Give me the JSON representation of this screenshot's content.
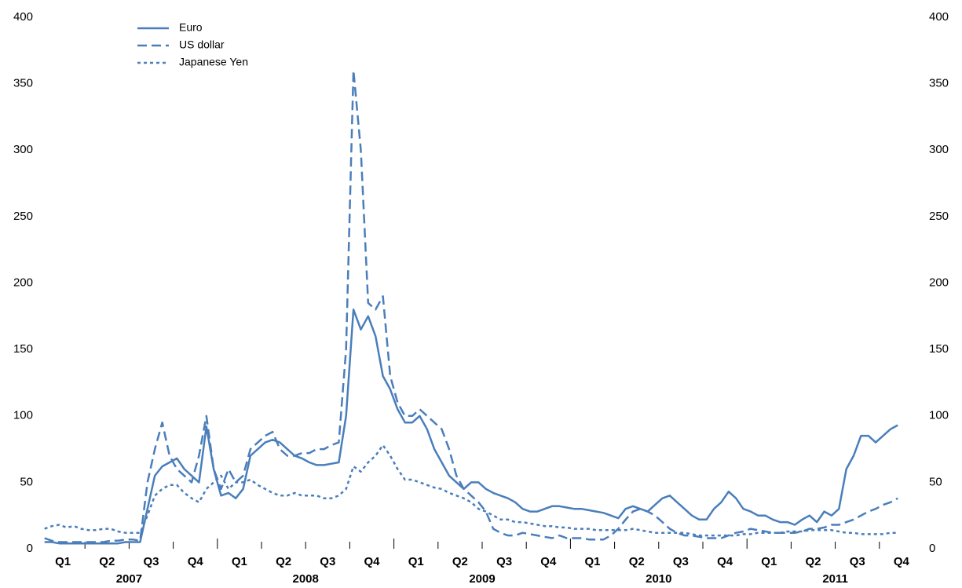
{
  "chart_data": {
    "type": "line",
    "categories": [
      null,
      null,
      null,
      "Q1",
      null,
      null,
      null,
      null,
      null,
      "Q2",
      null,
      null,
      null,
      null,
      null,
      "Q3",
      null,
      null,
      null,
      null,
      null,
      "Q4",
      null,
      null,
      null,
      null,
      null,
      "Q1",
      null,
      null,
      null,
      null,
      null,
      "Q2",
      null,
      null,
      null,
      null,
      null,
      "Q3",
      null,
      null,
      null,
      null,
      null,
      "Q4",
      null,
      null,
      null,
      null,
      null,
      "Q1",
      null,
      null,
      null,
      null,
      null,
      "Q2",
      null,
      null,
      null,
      null,
      null,
      "Q3",
      null,
      null,
      null,
      null,
      null,
      "Q4",
      null,
      null,
      null,
      null,
      null,
      "Q1",
      null,
      null,
      null,
      null,
      null,
      "Q2",
      null,
      null,
      null,
      null,
      null,
      "Q3",
      null,
      null,
      null,
      null,
      null,
      "Q4",
      null,
      null,
      null,
      null,
      null,
      "Q1",
      null,
      null,
      null,
      null,
      null,
      "Q2",
      null,
      null,
      null,
      null,
      null,
      "Q3",
      null,
      null,
      null,
      null,
      null,
      "Q4",
      null,
      null
    ],
    "years": [
      "2007",
      "2008",
      "2009",
      "2010",
      "2011"
    ],
    "series": [
      {
        "name": "Euro",
        "color": "#4a7ebb",
        "dash": "solid",
        "values": [
          5,
          5,
          4,
          4,
          4,
          4,
          4,
          4,
          4,
          4,
          4,
          5,
          5,
          5,
          30,
          55,
          62,
          65,
          68,
          60,
          55,
          50,
          92,
          60,
          40,
          42,
          38,
          45,
          70,
          75,
          80,
          82,
          80,
          75,
          70,
          68,
          65,
          63,
          63,
          64,
          65,
          100,
          180,
          165,
          175,
          160,
          130,
          120,
          105,
          95,
          95,
          100,
          90,
          75,
          65,
          55,
          50,
          45,
          50,
          50,
          45,
          42,
          40,
          38,
          35,
          30,
          28,
          28,
          30,
          32,
          32,
          31,
          30,
          30,
          29,
          28,
          27,
          25,
          23,
          30,
          32,
          30,
          28,
          33,
          38,
          40,
          35,
          30,
          25,
          22,
          22,
          30,
          35,
          43,
          38,
          30,
          28,
          25,
          25,
          22,
          20,
          20,
          18,
          22,
          25,
          20,
          28,
          25,
          30,
          60,
          70,
          85,
          85,
          80,
          85,
          90,
          93,
          null,
          null,
          null
        ]
      },
      {
        "name": "US dollar",
        "color": "#4a7ebb",
        "dash": "dashed",
        "values": [
          8,
          6,
          5,
          5,
          5,
          5,
          5,
          5,
          5,
          6,
          6,
          7,
          7,
          6,
          50,
          75,
          95,
          70,
          60,
          55,
          50,
          70,
          100,
          60,
          45,
          60,
          50,
          55,
          75,
          80,
          85,
          88,
          75,
          70,
          70,
          72,
          72,
          75,
          75,
          78,
          80,
          150,
          360,
          300,
          185,
          180,
          190,
          130,
          110,
          100,
          100,
          105,
          100,
          95,
          90,
          75,
          55,
          45,
          40,
          35,
          28,
          15,
          12,
          10,
          10,
          12,
          11,
          10,
          9,
          8,
          10,
          8,
          8,
          8,
          7,
          7,
          7,
          10,
          15,
          22,
          28,
          30,
          28,
          25,
          20,
          15,
          12,
          10,
          10,
          9,
          8,
          8,
          8,
          10,
          12,
          13,
          15,
          14,
          13,
          12,
          12,
          12,
          12,
          13,
          15,
          15,
          16,
          18,
          18,
          20,
          22,
          25,
          28,
          30,
          33,
          35,
          38,
          null,
          null,
          null
        ]
      },
      {
        "name": "Japanese Yen",
        "color": "#4a7ebb",
        "dash": "dotted",
        "values": [
          15,
          17,
          18,
          16,
          17,
          15,
          14,
          14,
          15,
          15,
          13,
          12,
          12,
          12,
          25,
          40,
          45,
          48,
          48,
          42,
          38,
          35,
          45,
          50,
          55,
          45,
          50,
          50,
          52,
          48,
          45,
          42,
          40,
          40,
          42,
          40,
          40,
          40,
          38,
          38,
          40,
          45,
          62,
          58,
          65,
          70,
          78,
          70,
          60,
          52,
          52,
          50,
          48,
          46,
          45,
          42,
          40,
          38,
          35,
          30,
          28,
          25,
          22,
          22,
          20,
          20,
          19,
          18,
          17,
          17,
          16,
          16,
          15,
          15,
          15,
          14,
          14,
          14,
          14,
          14,
          15,
          14,
          13,
          12,
          12,
          12,
          12,
          12,
          11,
          10,
          10,
          10,
          10,
          10,
          10,
          11,
          11,
          12,
          12,
          12,
          12,
          13,
          13,
          13,
          14,
          14,
          14,
          14,
          13,
          12,
          12,
          11,
          11,
          11,
          11,
          12,
          12,
          null,
          null,
          null
        ]
      }
    ],
    "ylim": [
      0,
      400
    ],
    "yticks": [
      0,
      50,
      100,
      150,
      200,
      250,
      300,
      350,
      400
    ],
    "y2lim": [
      0,
      400
    ],
    "y2ticks": [
      0,
      50,
      100,
      150,
      200,
      250,
      300,
      350,
      400
    ],
    "legend": "top-left"
  }
}
